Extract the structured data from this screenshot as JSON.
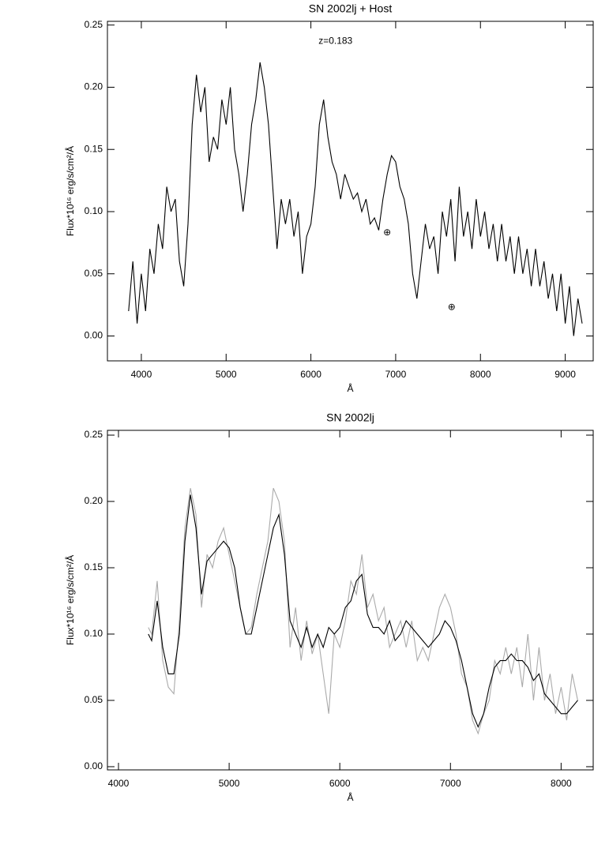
{
  "chart_data": [
    {
      "type": "line",
      "title": "SN 2002lj + Host",
      "xlabel": "Å",
      "ylabel": "Flux*10¹⁶ erg/s/cm²/Å",
      "annotations": [
        {
          "text": "z=0.183",
          "x": 6290,
          "y": 0.237
        },
        {
          "text": "⊕",
          "x": 6900,
          "y": 0.083
        },
        {
          "text": "⊕",
          "x": 7660,
          "y": 0.023
        }
      ],
      "x": [
        3850,
        3900,
        3950,
        4000,
        4050,
        4100,
        4150,
        4200,
        4250,
        4300,
        4350,
        4400,
        4450,
        4500,
        4550,
        4600,
        4650,
        4700,
        4750,
        4800,
        4850,
        4900,
        4950,
        5000,
        5050,
        5100,
        5150,
        5200,
        5250,
        5300,
        5350,
        5400,
        5450,
        5500,
        5550,
        5600,
        5650,
        5700,
        5750,
        5800,
        5850,
        5900,
        5950,
        6000,
        6050,
        6100,
        6150,
        6200,
        6250,
        6300,
        6350,
        6400,
        6450,
        6500,
        6550,
        6600,
        6650,
        6700,
        6750,
        6800,
        6850,
        6900,
        6950,
        7000,
        7050,
        7100,
        7150,
        7200,
        7250,
        7300,
        7350,
        7400,
        7450,
        7500,
        7550,
        7600,
        7650,
        7700,
        7750,
        7800,
        7850,
        7900,
        7950,
        8000,
        8050,
        8100,
        8150,
        8200,
        8250,
        8300,
        8350,
        8400,
        8450,
        8500,
        8550,
        8600,
        8650,
        8700,
        8750,
        8800,
        8850,
        8900,
        8950,
        9000,
        9050,
        9100,
        9150,
        9200
      ],
      "series": [
        {
          "color": "#000000",
          "values": [
            0.02,
            0.06,
            0.01,
            0.05,
            0.02,
            0.07,
            0.05,
            0.09,
            0.07,
            0.12,
            0.1,
            0.11,
            0.06,
            0.04,
            0.09,
            0.17,
            0.21,
            0.18,
            0.2,
            0.14,
            0.16,
            0.15,
            0.19,
            0.17,
            0.2,
            0.15,
            0.13,
            0.1,
            0.13,
            0.17,
            0.19,
            0.22,
            0.2,
            0.17,
            0.12,
            0.07,
            0.11,
            0.09,
            0.11,
            0.08,
            0.1,
            0.05,
            0.08,
            0.09,
            0.12,
            0.17,
            0.19,
            0.16,
            0.14,
            0.13,
            0.11,
            0.13,
            0.12,
            0.11,
            0.115,
            0.1,
            0.11,
            0.09,
            0.095,
            0.085,
            0.11,
            0.13,
            0.145,
            0.14,
            0.12,
            0.11,
            0.09,
            0.05,
            0.03,
            0.06,
            0.09,
            0.07,
            0.08,
            0.05,
            0.1,
            0.08,
            0.11,
            0.06,
            0.12,
            0.08,
            0.1,
            0.07,
            0.11,
            0.08,
            0.1,
            0.07,
            0.09,
            0.06,
            0.09,
            0.06,
            0.08,
            0.05,
            0.08,
            0.05,
            0.07,
            0.04,
            0.07,
            0.04,
            0.06,
            0.03,
            0.05,
            0.02,
            0.05,
            0.01,
            0.04,
            0.0,
            0.03,
            0.01
          ]
        }
      ],
      "xlim": [
        3600,
        9330
      ],
      "ylim": [
        -0.02,
        0.253
      ],
      "xticks": [
        4000,
        5000,
        6000,
        7000,
        8000,
        9000
      ],
      "yticks": [
        {
          "value": 0,
          "label": "0.00"
        },
        0.05,
        {
          "value": 0.1,
          "label": "0.10"
        },
        0.15,
        {
          "value": 0.2,
          "label": "0.20"
        },
        0.25
      ]
    },
    {
      "type": "line",
      "title": "SN 2002lj",
      "xlabel": "Å",
      "ylabel": "Flux*10¹⁶ erg/s/cm²/Å",
      "x": [
        4270,
        4300,
        4350,
        4400,
        4450,
        4500,
        4550,
        4600,
        4650,
        4700,
        4750,
        4800,
        4850,
        4900,
        4950,
        5000,
        5050,
        5100,
        5150,
        5200,
        5250,
        5300,
        5350,
        5400,
        5450,
        5500,
        5550,
        5600,
        5650,
        5700,
        5750,
        5800,
        5850,
        5900,
        5950,
        6000,
        6050,
        6100,
        6150,
        6200,
        6250,
        6300,
        6350,
        6400,
        6450,
        6500,
        6550,
        6600,
        6650,
        6700,
        6750,
        6800,
        6850,
        6900,
        6950,
        7000,
        7050,
        7100,
        7150,
        7200,
        7250,
        7300,
        7350,
        7400,
        7450,
        7500,
        7550,
        7600,
        7650,
        7700,
        7750,
        7800,
        7850,
        7900,
        7950,
        8000,
        8050,
        8100,
        8150
      ],
      "series": [
        {
          "color": "#aaaaaa",
          "values": [
            0.105,
            0.1,
            0.14,
            0.08,
            0.06,
            0.055,
            0.11,
            0.18,
            0.21,
            0.19,
            0.12,
            0.16,
            0.15,
            0.17,
            0.18,
            0.16,
            0.14,
            0.12,
            0.1,
            0.105,
            0.13,
            0.15,
            0.17,
            0.21,
            0.2,
            0.17,
            0.09,
            0.12,
            0.08,
            0.11,
            0.085,
            0.1,
            0.07,
            0.04,
            0.1,
            0.09,
            0.11,
            0.14,
            0.13,
            0.16,
            0.12,
            0.13,
            0.11,
            0.12,
            0.09,
            0.1,
            0.11,
            0.09,
            0.11,
            0.08,
            0.09,
            0.08,
            0.1,
            0.12,
            0.13,
            0.12,
            0.1,
            0.07,
            0.06,
            0.035,
            0.025,
            0.04,
            0.05,
            0.08,
            0.07,
            0.09,
            0.07,
            0.09,
            0.06,
            0.1,
            0.05,
            0.09,
            0.05,
            0.07,
            0.04,
            0.06,
            0.035,
            0.07,
            0.05
          ]
        },
        {
          "color": "#000000",
          "values": [
            0.1,
            0.095,
            0.125,
            0.09,
            0.07,
            0.07,
            0.1,
            0.17,
            0.205,
            0.18,
            0.13,
            0.155,
            0.16,
            0.165,
            0.17,
            0.165,
            0.15,
            0.12,
            0.1,
            0.1,
            0.12,
            0.14,
            0.16,
            0.18,
            0.19,
            0.16,
            0.11,
            0.1,
            0.09,
            0.105,
            0.09,
            0.1,
            0.09,
            0.105,
            0.1,
            0.105,
            0.12,
            0.125,
            0.14,
            0.145,
            0.115,
            0.105,
            0.105,
            0.1,
            0.11,
            0.095,
            0.1,
            0.11,
            0.105,
            0.1,
            0.095,
            0.09,
            0.095,
            0.1,
            0.11,
            0.105,
            0.095,
            0.08,
            0.06,
            0.04,
            0.03,
            0.04,
            0.06,
            0.075,
            0.08,
            0.08,
            0.085,
            0.08,
            0.08,
            0.075,
            0.065,
            0.07,
            0.055,
            0.05,
            0.045,
            0.04,
            0.04,
            0.045,
            0.05
          ]
        }
      ],
      "xlim": [
        3900,
        8290
      ],
      "ylim": [
        -0.0024,
        0.2536
      ],
      "xticks": [
        4000,
        5000,
        6000,
        7000,
        8000
      ],
      "yticks": [
        {
          "value": 0,
          "label": "0.00"
        },
        0.05,
        {
          "value": 0.1,
          "label": "0.10"
        },
        0.15,
        {
          "value": 0.2,
          "label": "0.20"
        },
        0.25
      ]
    }
  ]
}
